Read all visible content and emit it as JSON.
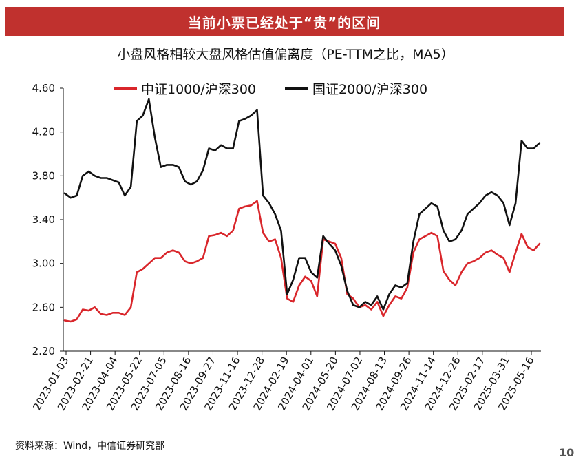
{
  "banner": {
    "text": "当前小票已经处于“贵”的区间"
  },
  "source": "资料来源：Wind，中信证券研究部",
  "page_number": "10",
  "colors": {
    "banner": "#c0312e",
    "series_red": "#d9262b",
    "series_black": "#111111"
  },
  "chart_data": {
    "type": "line",
    "title": "小盘风格相较大盘风格估值偏离度（PE-TTM之比，MA5）",
    "xlabel": "",
    "ylabel": "",
    "ylim": [
      2.2,
      4.6
    ],
    "yticks": [
      "4.60",
      "4.20",
      "3.80",
      "3.40",
      "3.00",
      "2.60",
      "2.20"
    ],
    "xticks": [
      "2023-01-03",
      "2023-02-21",
      "2023-04-04",
      "2023-05-22",
      "2023-07-05",
      "2023-08-16",
      "2023-09-27",
      "2023-11-16",
      "2023-12-28",
      "2024-02-19",
      "2024-04-01",
      "2024-05-20",
      "2024-07-02",
      "2024-08-13",
      "2024-09-26",
      "2024-11-14",
      "2024-12-26",
      "2025-02-17",
      "2025-03-31",
      "2025-05-16"
    ],
    "legend_position": "top",
    "series": [
      {
        "name": "中证1000/沪深300",
        "color": "#d9262b",
        "values": [
          2.48,
          2.47,
          2.49,
          2.58,
          2.57,
          2.6,
          2.54,
          2.53,
          2.55,
          2.55,
          2.53,
          2.6,
          2.92,
          2.95,
          3.0,
          3.05,
          3.05,
          3.1,
          3.12,
          3.1,
          3.02,
          3.0,
          3.02,
          3.05,
          3.25,
          3.26,
          3.28,
          3.25,
          3.3,
          3.5,
          3.52,
          3.53,
          3.57,
          3.28,
          3.2,
          3.22,
          3.05,
          2.68,
          2.65,
          2.8,
          2.88,
          2.84,
          2.7,
          3.22,
          3.2,
          3.18,
          3.05,
          2.72,
          2.68,
          2.6,
          2.62,
          2.58,
          2.65,
          2.52,
          2.62,
          2.7,
          2.68,
          2.78,
          3.1,
          3.22,
          3.25,
          3.28,
          3.25,
          2.93,
          2.85,
          2.8,
          2.92,
          3.0,
          3.02,
          3.05,
          3.1,
          3.12,
          3.08,
          3.05,
          2.92,
          3.1,
          3.27,
          3.15,
          3.12,
          3.18
        ]
      },
      {
        "name": "国证2000/沪深300",
        "color": "#111111",
        "values": [
          3.64,
          3.6,
          3.62,
          3.8,
          3.84,
          3.8,
          3.78,
          3.78,
          3.76,
          3.74,
          3.62,
          3.7,
          4.3,
          4.35,
          4.5,
          4.15,
          3.88,
          3.9,
          3.9,
          3.88,
          3.75,
          3.72,
          3.75,
          3.85,
          4.05,
          4.03,
          4.08,
          4.05,
          4.05,
          4.3,
          4.32,
          4.35,
          4.4,
          3.62,
          3.55,
          3.45,
          3.3,
          2.72,
          2.85,
          3.05,
          3.05,
          2.92,
          2.87,
          3.25,
          3.18,
          3.12,
          2.98,
          2.75,
          2.62,
          2.6,
          2.65,
          2.62,
          2.7,
          2.58,
          2.72,
          2.8,
          2.78,
          2.82,
          3.2,
          3.45,
          3.5,
          3.55,
          3.52,
          3.3,
          3.2,
          3.22,
          3.3,
          3.45,
          3.5,
          3.55,
          3.62,
          3.65,
          3.62,
          3.55,
          3.35,
          3.55,
          4.12,
          4.05,
          4.05,
          4.1
        ]
      }
    ]
  }
}
